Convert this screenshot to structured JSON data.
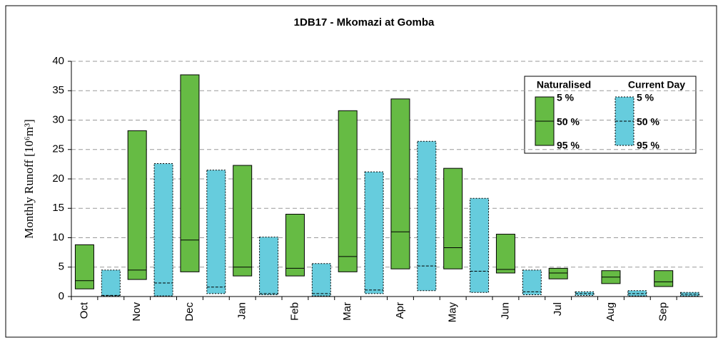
{
  "chart_data": {
    "type": "box",
    "title": "1DB17 - Mkomazi at Gomba",
    "y_label": "Monthly Runoff [10⁶m³]",
    "categories": [
      "Oct",
      "Nov",
      "Dec",
      "Jan",
      "Feb",
      "Mar",
      "Apr",
      "May",
      "Jun",
      "Jul",
      "Aug",
      "Sep"
    ],
    "ylim": [
      0,
      40
    ],
    "yticks": [
      0,
      5,
      10,
      15,
      20,
      25,
      30,
      35,
      40
    ],
    "grid": true,
    "legend_position": "upper right",
    "legend_labels": [
      "5 %",
      "50 %",
      "95 %"
    ],
    "series": [
      {
        "name": "Naturalised",
        "color": "#66bb44",
        "low": [
          1.3,
          2.9,
          4.2,
          3.5,
          3.5,
          4.2,
          4.7,
          4.7,
          4.0,
          3.0,
          2.2,
          1.7
        ],
        "median": [
          2.7,
          4.5,
          9.6,
          5.0,
          4.8,
          6.8,
          11.0,
          8.3,
          4.6,
          4.0,
          3.3,
          2.5
        ],
        "high": [
          8.8,
          28.2,
          37.7,
          22.3,
          14.0,
          31.6,
          33.6,
          21.8,
          10.6,
          4.8,
          4.4,
          4.4
        ]
      },
      {
        "name": "Current Day",
        "color": "#66ccdd",
        "low": [
          0.1,
          0.1,
          0.5,
          0.3,
          0.1,
          0.5,
          1.0,
          0.7,
          0.3,
          0.2,
          0.1,
          0.1
        ],
        "median": [
          0.2,
          2.3,
          1.6,
          0.5,
          0.5,
          1.1,
          5.2,
          4.3,
          0.8,
          0.5,
          0.5,
          0.4
        ],
        "high": [
          4.5,
          22.6,
          21.5,
          10.1,
          5.6,
          21.2,
          26.4,
          16.7,
          4.5,
          0.8,
          1.0,
          0.7
        ]
      }
    ]
  }
}
